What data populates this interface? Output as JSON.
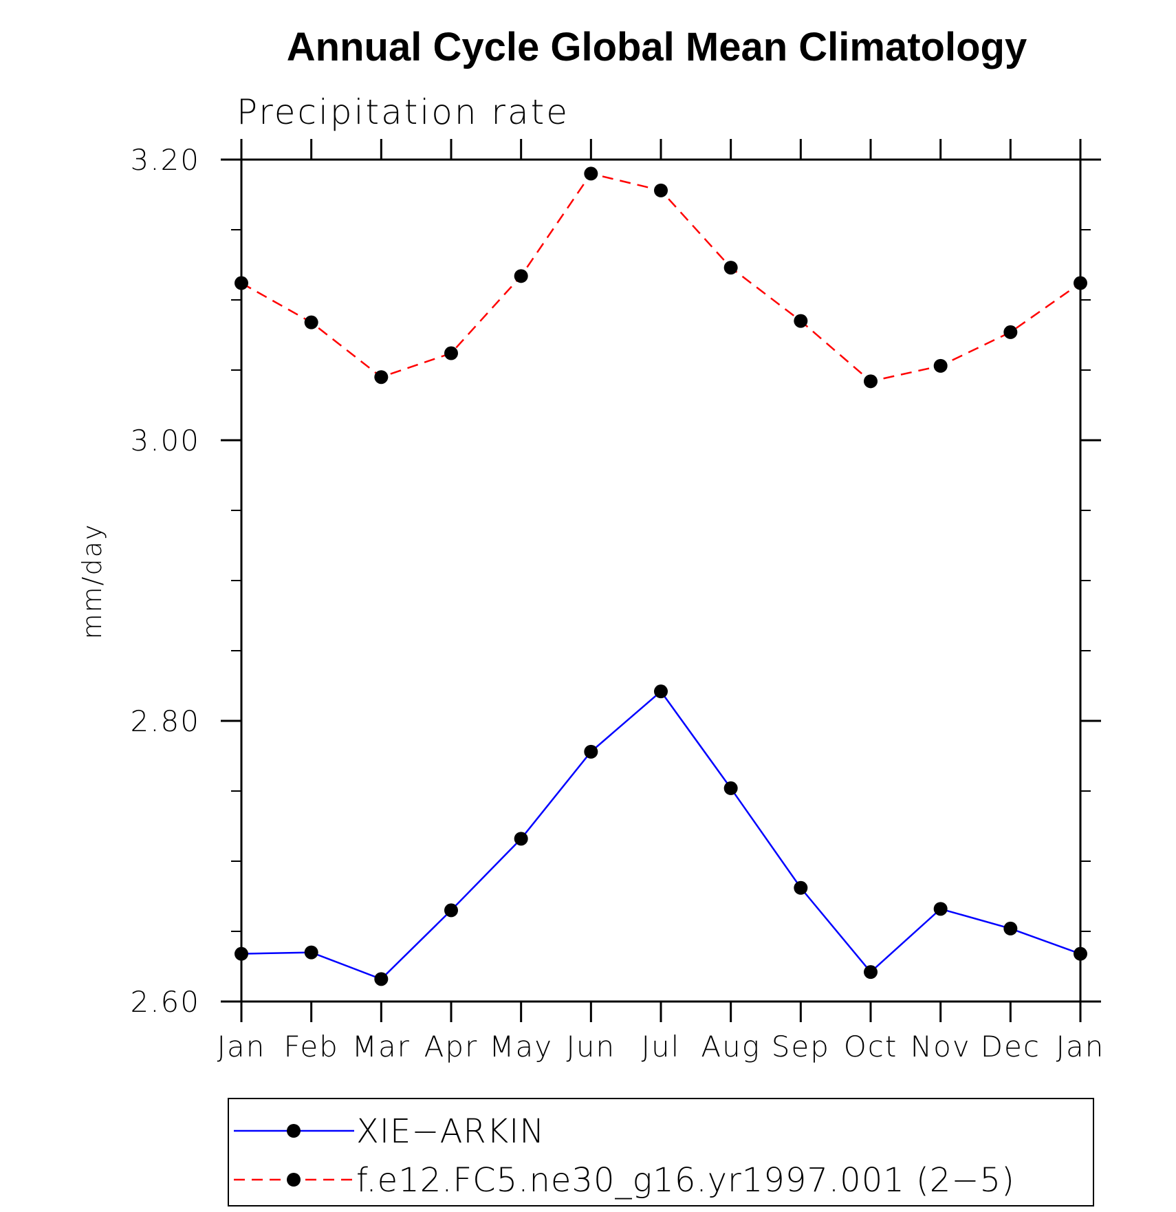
{
  "chart_data": {
    "type": "line",
    "title": "Annual Cycle Global Mean Climatology",
    "subtitle": "Precipitation rate",
    "ylabel": "mm/day",
    "xlabel": "",
    "categories": [
      "Jan",
      "Feb",
      "Mar",
      "Apr",
      "May",
      "Jun",
      "Jul",
      "Aug",
      "Sep",
      "Oct",
      "Nov",
      "Dec",
      "Jan"
    ],
    "ylim": [
      2.6,
      3.2
    ],
    "yticks": [
      2.6,
      2.8,
      3.0,
      3.2
    ],
    "ytick_labels": [
      "2.60",
      "2.80",
      "3.00",
      "3.20"
    ],
    "yminor_step": 0.05,
    "grid": false,
    "legend_position": "bottom",
    "series": [
      {
        "name": "XIE−ARKIN",
        "color": "#0000ff",
        "line_style": "solid",
        "marker": "filled-circle",
        "values": [
          2.634,
          2.635,
          2.616,
          2.665,
          2.716,
          2.778,
          2.821,
          2.752,
          2.681,
          2.621,
          2.666,
          2.652,
          2.634
        ]
      },
      {
        "name": "f.e12.FC5.ne30_g16.yr1997.001 (2−5)",
        "color": "#ff0000",
        "line_style": "dashed",
        "marker": "filled-circle",
        "values": [
          3.112,
          3.084,
          3.045,
          3.062,
          3.117,
          3.19,
          3.178,
          3.123,
          3.085,
          3.042,
          3.053,
          3.077,
          3.112
        ]
      }
    ]
  }
}
